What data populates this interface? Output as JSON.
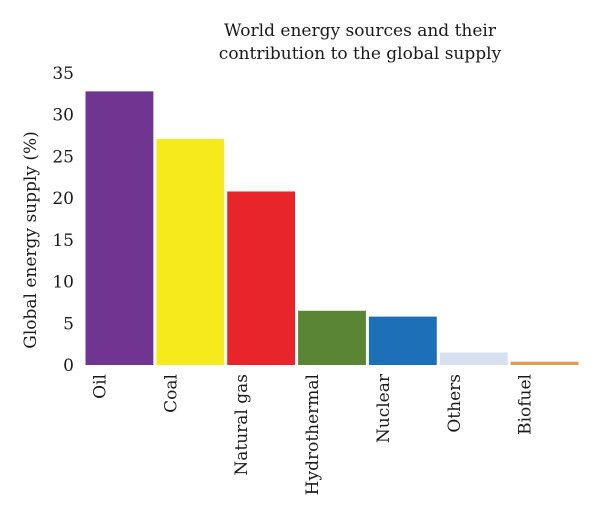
{
  "chart_data": {
    "type": "bar",
    "title_line1": "World energy sources and their",
    "title_line2": "contribution to the global supply",
    "xlabel": "",
    "ylabel": "Global energy supply (%)",
    "ylim": [
      0,
      35
    ],
    "yticks": [
      0,
      5,
      10,
      15,
      20,
      25,
      30,
      35
    ],
    "grid": false,
    "categories": [
      "Oil",
      "Coal",
      "Natural gas",
      "Hydrothermal",
      "Nuclear",
      "Others",
      "Biofuel"
    ],
    "values": [
      32.8,
      27.1,
      20.8,
      6.5,
      5.8,
      1.5,
      0.4
    ],
    "colors": [
      "#6f3590",
      "#f6ea1c",
      "#e8252a",
      "#5a8535",
      "#1d6fb8",
      "#d6e0ef",
      "#e39a52"
    ]
  }
}
